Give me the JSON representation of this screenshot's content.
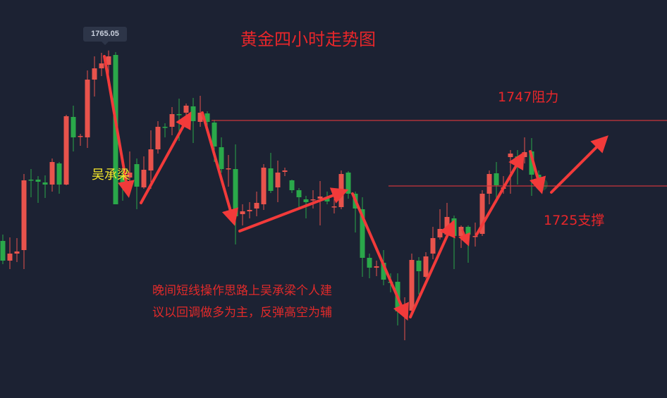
{
  "chart_data": {
    "type": "candlestick",
    "title": "黄金四小时走势图",
    "up_color": "#e8534c",
    "down_color": "#2aa84a",
    "high_label": "1765.05",
    "candle_fields": [
      "open",
      "high",
      "low",
      "close"
    ],
    "candles": [
      [
        1711.0,
        1712.8,
        1704.4,
        1705.4
      ],
      [
        1705.4,
        1712.0,
        1703.0,
        1707.4
      ],
      [
        1707.4,
        1711.8,
        1705.0,
        1708.0
      ],
      [
        1708.4,
        1730.0,
        1703.0,
        1728.2
      ],
      [
        1728.4,
        1731.4,
        1723.4,
        1728.3
      ],
      [
        1728.4,
        1729.4,
        1721.8,
        1727.8
      ],
      [
        1727.6,
        1729.6,
        1723.2,
        1727.0
      ],
      [
        1727.0,
        1734.4,
        1725.0,
        1733.4
      ],
      [
        1733.0,
        1733.4,
        1724.4,
        1727.0
      ],
      [
        1727.0,
        1746.8,
        1726.8,
        1746.4
      ],
      [
        1746.2,
        1749.4,
        1736.4,
        1740.4
      ],
      [
        1740.6,
        1741.4,
        1738.0,
        1740.8
      ],
      [
        1740.4,
        1759.4,
        1737.4,
        1756.8
      ],
      [
        1756.8,
        1763.4,
        1752.0,
        1760.0
      ],
      [
        1760.0,
        1764.4,
        1757.8,
        1761.4
      ],
      [
        1761.0,
        1765.05,
        1757.4,
        1763.4
      ],
      [
        1763.8,
        1764.6,
        1721.4,
        1721.4
      ],
      [
        1729.4,
        1735.4,
        1722.4,
        1726.8
      ],
      [
        1729.0,
        1736.4,
        1726.4,
        1730.4
      ],
      [
        1732.8,
        1734.4,
        1720.0,
        1726.4
      ],
      [
        1726.2,
        1735.0,
        1725.8,
        1731.2
      ],
      [
        1731.0,
        1742.4,
        1725.8,
        1737.0
      ],
      [
        1737.0,
        1745.0,
        1735.8,
        1743.4
      ],
      [
        1743.4,
        1744.4,
        1740.4,
        1743.3
      ],
      [
        1743.4,
        1749.0,
        1741.0,
        1747.0
      ],
      [
        1747.0,
        1751.4,
        1739.4,
        1746.9
      ],
      [
        1747.4,
        1750.0,
        1745.2,
        1749.4
      ],
      [
        1749.2,
        1751.6,
        1738.8,
        1745.0
      ],
      [
        1744.8,
        1752.2,
        1743.4,
        1747.4
      ],
      [
        1747.2,
        1747.8,
        1742.2,
        1744.8
      ],
      [
        1744.6,
        1745.4,
        1733.4,
        1737.8
      ],
      [
        1737.6,
        1740.4,
        1730.4,
        1731.4
      ],
      [
        1731.4,
        1735.4,
        1726.4,
        1731.6
      ],
      [
        1731.4,
        1738.4,
        1710.0,
        1718.0
      ],
      [
        1718.6,
        1721.4,
        1715.4,
        1719.4
      ],
      [
        1719.4,
        1722.0,
        1717.4,
        1719.8
      ],
      [
        1720.2,
        1725.0,
        1718.0,
        1721.8
      ],
      [
        1721.4,
        1732.8,
        1719.8,
        1731.8
      ],
      [
        1731.6,
        1736.0,
        1724.6,
        1725.2
      ],
      [
        1726.2,
        1733.8,
        1722.0,
        1730.4
      ],
      [
        1730.6,
        1731.8,
        1729.4,
        1731.0
      ],
      [
        1728.2,
        1728.4,
        1724.6,
        1725.4
      ],
      [
        1725.4,
        1726.0,
        1720.2,
        1723.4
      ],
      [
        1722.8,
        1723.8,
        1717.4,
        1722.0
      ],
      [
        1722.6,
        1725.4,
        1720.2,
        1722.8
      ],
      [
        1723.0,
        1728.0,
        1715.4,
        1723.6
      ],
      [
        1723.4,
        1725.0,
        1721.4,
        1722.2
      ],
      [
        1720.6,
        1723.0,
        1718.8,
        1720.8
      ],
      [
        1720.6,
        1731.0,
        1720.0,
        1730.0
      ],
      [
        1730.4,
        1730.8,
        1723.0,
        1724.4
      ],
      [
        1724.4,
        1725.0,
        1713.4,
        1720.2
      ],
      [
        1720.0,
        1723.4,
        1700.8,
        1706.2
      ],
      [
        1706.2,
        1707.4,
        1700.4,
        1703.4
      ],
      [
        1703.4,
        1705.4,
        1701.0,
        1703.8
      ],
      [
        1704.8,
        1708.4,
        1698.4,
        1700.0
      ],
      [
        1699.4,
        1701.8,
        1696.4,
        1699.2
      ],
      [
        1699.4,
        1701.8,
        1687.0,
        1691.0
      ],
      [
        1691.0,
        1695.0,
        1682.8,
        1691.8
      ],
      [
        1691.2,
        1707.4,
        1690.0,
        1705.6
      ],
      [
        1705.4,
        1706.4,
        1695.8,
        1702.4
      ],
      [
        1700.8,
        1707.8,
        1700.4,
        1706.6
      ],
      [
        1707.4,
        1715.0,
        1705.8,
        1711.8
      ],
      [
        1712.0,
        1720.0,
        1711.4,
        1714.4
      ],
      [
        1712.8,
        1721.8,
        1712.2,
        1717.8
      ],
      [
        1717.4,
        1718.2,
        1703.0,
        1712.4
      ],
      [
        1712.4,
        1715.4,
        1709.0,
        1715.0
      ],
      [
        1715.0,
        1715.4,
        1704.8,
        1712.8
      ],
      [
        1712.2,
        1716.2,
        1709.4,
        1712.4
      ],
      [
        1713.0,
        1725.4,
        1712.4,
        1724.4
      ],
      [
        1724.4,
        1731.0,
        1721.4,
        1730.0
      ],
      [
        1730.2,
        1733.4,
        1721.8,
        1726.8
      ],
      [
        1725.8,
        1729.4,
        1724.4,
        1726.2
      ],
      [
        1734.8,
        1736.8,
        1724.4,
        1735.8
      ],
      [
        1735.0,
        1736.8,
        1727.0,
        1734.6
      ],
      [
        1734.8,
        1740.4,
        1733.0,
        1736.2
      ],
      [
        1736.4,
        1740.2,
        1723.8,
        1729.8
      ],
      [
        1729.8,
        1731.0,
        1725.4,
        1727.0
      ]
    ],
    "annotations": {
      "resistance_label": "1747阻力",
      "support_label": "1725支撑",
      "resistance_level": 1747,
      "support_level": 1725,
      "author": "吴承梁",
      "note_line1": "晚间短线操作思路上吴承梁个人建",
      "note_line2": "议以回调做多为主，反弹高空为辅",
      "arrow_color": "#f23a3a",
      "line_color": "#c8363c"
    }
  }
}
